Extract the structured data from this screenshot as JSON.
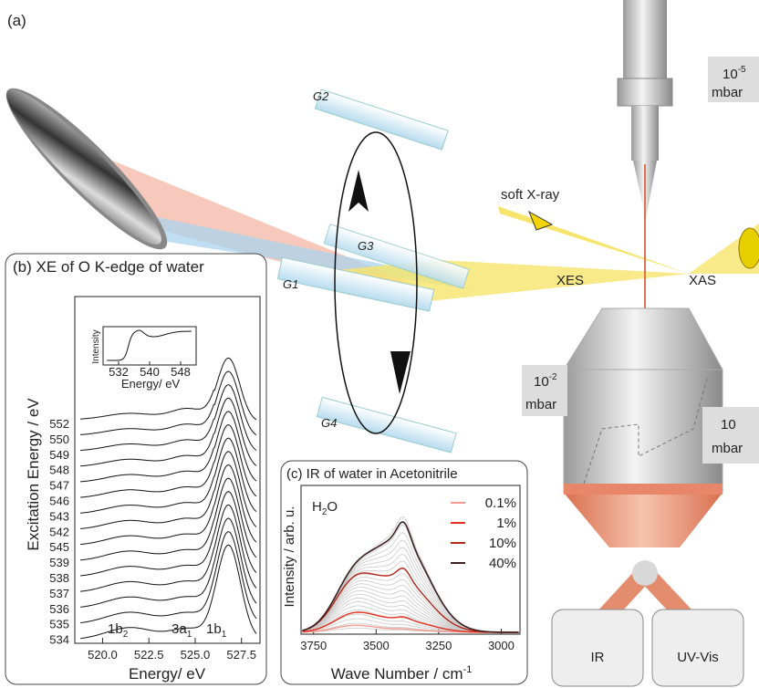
{
  "panel_a": {
    "label": "(a)",
    "pressure_top": {
      "base": "10",
      "exp": "-5",
      "unit": "mbar"
    },
    "pressure_left": {
      "base": "10",
      "exp": "-2",
      "unit": "mbar"
    },
    "pressure_right": {
      "base": "10",
      "unit": "mbar"
    },
    "gratings": [
      "G1",
      "G2",
      "G3",
      "G4"
    ],
    "beam": "soft X-ray",
    "xes": "XES",
    "xas": "XAS",
    "detectors": [
      "IR",
      "UV-Vis"
    ]
  },
  "panel_b": {
    "title": "(b) XE of O K-edge of water",
    "y_label": "Excitation Energy / eV",
    "x_label": "Energy/ eV",
    "excitation_energies": [
      552,
      550,
      549,
      548,
      547,
      546,
      543,
      542,
      545,
      539,
      538,
      537,
      536,
      535,
      534
    ],
    "xlim": [
      518.5,
      528.5
    ],
    "xticks": [
      {
        "value": 520,
        "label": "520.0"
      },
      {
        "value": 522.5,
        "label": "522.5"
      },
      {
        "value": 525,
        "label": "525.0"
      },
      {
        "value": 527.5,
        "label": "527.5"
      }
    ],
    "peaks": [
      {
        "text": "1b",
        "sub": "2"
      },
      {
        "text": "3a",
        "sub": "1"
      },
      {
        "text": "1b",
        "sub": "1"
      }
    ],
    "inset": {
      "y_label": "Intensity",
      "x_label": "Energy/ eV",
      "xlim": [
        528,
        552
      ],
      "xticks": [
        532,
        540,
        548
      ]
    }
  },
  "panel_c": {
    "title": "(c) IR of water in Acetonitrile",
    "y_label": "Intensity / arb. u.",
    "x_label": {
      "text": "Wave Number / cm",
      "sup": "-1"
    },
    "species": {
      "text": "H",
      "sub": "2",
      "rest": "O"
    },
    "xlim": [
      3800,
      2925
    ],
    "xticks": [
      3750,
      3500,
      3250,
      3000
    ],
    "legend": [
      {
        "label": "0.1%",
        "color": "#f29a90"
      },
      {
        "label": "1%",
        "color": "#e2301f"
      },
      {
        "label": "10%",
        "color": "#b5261a"
      },
      {
        "label": "40%",
        "color": "#3a2020"
      }
    ]
  }
}
